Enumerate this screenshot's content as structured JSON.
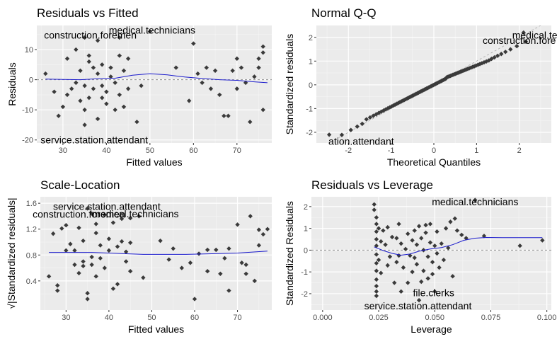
{
  "chart_data": [
    {
      "id": "rvf",
      "type": "scatter",
      "title": "Residuals vs Fitted",
      "xlabel": "Fitted values",
      "ylabel": "Residuals",
      "xlim": [
        24,
        78
      ],
      "ylim": [
        -21,
        18
      ],
      "xticks": [
        30,
        40,
        50,
        60,
        70
      ],
      "yticks": [
        -20,
        -10,
        0,
        10
      ],
      "refline": {
        "y": 0,
        "color": "#8c8c8c"
      },
      "smooth_color": "#1a1acc",
      "smooth": [
        [
          26,
          0.2
        ],
        [
          30,
          0.1
        ],
        [
          34,
          0.0
        ],
        [
          38,
          0.3
        ],
        [
          42,
          0.5
        ],
        [
          46,
          1.5
        ],
        [
          50,
          2.0
        ],
        [
          54,
          1.6
        ],
        [
          58,
          0.9
        ],
        [
          62,
          0.4
        ],
        [
          66,
          0.0
        ],
        [
          70,
          -0.2
        ],
        [
          74,
          -0.7
        ],
        [
          77,
          -1.0
        ]
      ],
      "points": [
        [
          26,
          2
        ],
        [
          28,
          -4
        ],
        [
          29,
          -12
        ],
        [
          30,
          -9
        ],
        [
          31,
          7
        ],
        [
          31,
          -5
        ],
        [
          32,
          -3
        ],
        [
          33,
          10
        ],
        [
          33,
          -1
        ],
        [
          34,
          3
        ],
        [
          34,
          -7
        ],
        [
          35,
          -10
        ],
        [
          35,
          -2
        ],
        [
          35,
          14
        ],
        [
          35,
          -15
        ],
        [
          36,
          6
        ],
        [
          36,
          8
        ],
        [
          36,
          -6
        ],
        [
          37,
          -3
        ],
        [
          37,
          4
        ],
        [
          38,
          -13
        ],
        [
          38,
          2
        ],
        [
          38,
          13
        ],
        [
          39,
          -6
        ],
        [
          39,
          5
        ],
        [
          39,
          -2
        ],
        [
          40,
          -8
        ],
        [
          40,
          -4
        ],
        [
          41,
          1
        ],
        [
          41,
          4
        ],
        [
          42,
          -1
        ],
        [
          42,
          -10
        ],
        [
          43,
          -5
        ],
        [
          43,
          8
        ],
        [
          43,
          14
        ],
        [
          44,
          3
        ],
        [
          44,
          -9
        ],
        [
          45,
          -3
        ],
        [
          45,
          7
        ],
        [
          47,
          -14
        ],
        [
          48,
          -2
        ],
        [
          50,
          16
        ],
        [
          56,
          4
        ],
        [
          59,
          -7
        ],
        [
          60,
          12
        ],
        [
          61,
          2
        ],
        [
          62,
          -1
        ],
        [
          63,
          4
        ],
        [
          64,
          -3
        ],
        [
          65,
          3
        ],
        [
          66,
          -5
        ],
        [
          67,
          -12
        ],
        [
          68,
          -12
        ],
        [
          69,
          3
        ],
        [
          70,
          -3
        ],
        [
          70,
          7
        ],
        [
          71,
          4
        ],
        [
          72,
          -1
        ],
        [
          73,
          -14
        ],
        [
          74,
          1
        ],
        [
          75,
          7
        ],
        [
          75,
          4
        ],
        [
          76,
          -10
        ],
        [
          76,
          11
        ],
        [
          76,
          9
        ]
      ],
      "annotations": [
        {
          "label": "medical.technicians",
          "x": 50.5,
          "y": 16.5
        },
        {
          "label": "construction.foremen",
          "x": 36.3,
          "y": 14.8
        },
        {
          "label": "service.station.attendant",
          "x": 37.2,
          "y": -19.9
        }
      ]
    },
    {
      "id": "qq",
      "type": "scatter",
      "title": "Normal Q-Q",
      "xlabel": "Theoretical Quantiles",
      "ylabel": "Standardized residuals",
      "xlim": [
        -2.75,
        2.75
      ],
      "ylim": [
        -2.45,
        2.5
      ],
      "xticks": [
        -2,
        -1,
        0,
        1,
        2
      ],
      "yticks": [
        -2,
        -1,
        0,
        1,
        2
      ],
      "refline": {
        "from": [
          -2.75,
          -2.75
        ],
        "to": [
          2.75,
          2.75
        ],
        "color": "#a8a8a8",
        "dashed": true
      },
      "series_qq": {
        "n": 96,
        "tail_low": [
          -2.45,
          -2.1
        ],
        "tail_high": [
          2.1,
          2.2
        ]
      },
      "annotations": [
        {
          "label": "medical.techn",
          "x": 2.55,
          "y": 2.1
        },
        {
          "label": "construction.fore",
          "x": 2.0,
          "y": 1.88
        },
        {
          "label": "ation.attendant",
          "x": -1.7,
          "y": -2.38
        }
      ]
    },
    {
      "id": "sl",
      "type": "scatter",
      "title": "Scale-Location",
      "xlabel": "Fitted values",
      "ylabel": "√|Standardized residuals|",
      "xlim": [
        24,
        78
      ],
      "ylim": [
        -0.05,
        1.7
      ],
      "xticks": [
        30,
        40,
        50,
        60,
        70
      ],
      "yticks": [
        0.4,
        0.8,
        1.2,
        1.6
      ],
      "smooth_color": "#1a1acc",
      "smooth": [
        [
          26,
          0.84
        ],
        [
          32,
          0.84
        ],
        [
          36,
          0.84
        ],
        [
          40,
          0.83
        ],
        [
          44,
          0.82
        ],
        [
          48,
          0.81
        ],
        [
          52,
          0.81
        ],
        [
          58,
          0.81
        ],
        [
          64,
          0.82
        ],
        [
          70,
          0.83
        ],
        [
          77,
          0.86
        ]
      ],
      "points": [
        [
          26,
          0.47
        ],
        [
          27,
          1.13
        ],
        [
          28,
          0.33
        ],
        [
          28,
          0.25
        ],
        [
          29,
          1.21
        ],
        [
          30,
          0.87
        ],
        [
          30,
          1.26
        ],
        [
          31,
          0.97
        ],
        [
          32,
          0.87
        ],
        [
          32,
          0.65
        ],
        [
          33,
          1.22
        ],
        [
          33,
          0.52
        ],
        [
          34,
          0.7
        ],
        [
          34,
          1.02
        ],
        [
          34,
          0.63
        ],
        [
          35,
          0.12
        ],
        [
          35,
          0.21
        ],
        [
          35,
          1.52
        ],
        [
          36,
          0.77
        ],
        [
          36,
          1.44
        ],
        [
          36,
          0.65
        ],
        [
          37,
          1.14
        ],
        [
          37,
          1.28
        ],
        [
          37,
          0.47
        ],
        [
          38,
          0.95
        ],
        [
          38,
          0.75
        ],
        [
          39,
          1.42
        ],
        [
          39,
          0.6
        ],
        [
          40,
          1.05
        ],
        [
          40,
          0.87
        ],
        [
          41,
          0.28
        ],
        [
          41,
          1.3
        ],
        [
          42,
          0.35
        ],
        [
          42,
          0.93
        ],
        [
          43,
          1.01
        ],
        [
          43,
          1.36
        ],
        [
          44,
          0.7
        ],
        [
          44,
          0.85
        ],
        [
          45,
          1.37
        ],
        [
          45,
          0.99
        ],
        [
          45,
          0.55
        ],
        [
          47,
          1.4
        ],
        [
          48,
          0.45
        ],
        [
          52,
          1.02
        ],
        [
          54,
          0.73
        ],
        [
          55,
          0.9
        ],
        [
          57,
          0.6
        ],
        [
          59,
          0.68
        ],
        [
          60,
          0.12
        ],
        [
          61,
          0.82
        ],
        [
          63,
          0.88
        ],
        [
          63,
          0.55
        ],
        [
          65,
          0.88
        ],
        [
          66,
          0.51
        ],
        [
          67,
          0.75
        ],
        [
          68,
          0.25
        ],
        [
          68,
          0.9
        ],
        [
          70,
          1.27
        ],
        [
          71,
          0.68
        ],
        [
          72,
          0.65
        ],
        [
          72,
          0.51
        ],
        [
          73,
          1.4
        ],
        [
          74,
          0.4
        ],
        [
          75,
          0.95
        ],
        [
          75,
          1.19
        ],
        [
          76,
          1.12
        ],
        [
          77,
          1.2
        ]
      ],
      "annotations": [
        {
          "label": "service.station.attendant",
          "x": 39.5,
          "y": 1.55
        },
        {
          "label": "medical.technicians",
          "x": 46.2,
          "y": 1.44
        },
        {
          "label": "construction.foremen",
          "x": 33.0,
          "y": 1.43
        }
      ]
    },
    {
      "id": "rvl",
      "type": "scatter",
      "title": "Residuals vs Leverage",
      "xlabel": "Leverage",
      "ylabel": "Standardized Residuals",
      "xlim": [
        -0.005,
        0.102
      ],
      "ylim": [
        -2.75,
        2.45
      ],
      "xticks": [
        0.0,
        0.025,
        0.05,
        0.075,
        0.1
      ],
      "xticklabels": [
        "0.000",
        "0.025",
        "0.050",
        "0.075",
        "0.100"
      ],
      "yticks": [
        -2,
        -1,
        0,
        1,
        2
      ],
      "refline": {
        "y": 0,
        "color": "#8c8c8c"
      },
      "smooth_color": "#1a1acc",
      "smooth": [
        [
          0.023,
          0.15
        ],
        [
          0.027,
          -0.02
        ],
        [
          0.031,
          -0.15
        ],
        [
          0.035,
          -0.23
        ],
        [
          0.039,
          -0.18
        ],
        [
          0.043,
          -0.05
        ],
        [
          0.048,
          0.05
        ],
        [
          0.053,
          0.12
        ],
        [
          0.058,
          0.25
        ],
        [
          0.063,
          0.45
        ],
        [
          0.068,
          0.55
        ],
        [
          0.073,
          0.58
        ],
        [
          0.08,
          0.57
        ],
        [
          0.09,
          0.57
        ],
        [
          0.098,
          0.57
        ]
      ],
      "points": [
        [
          0.023,
          2.1
        ],
        [
          0.023,
          1.85
        ],
        [
          0.024,
          1.5
        ],
        [
          0.024,
          1.2
        ],
        [
          0.024,
          0.85
        ],
        [
          0.024,
          0.5
        ],
        [
          0.024,
          0.2
        ],
        [
          0.024,
          -0.2
        ],
        [
          0.024,
          -0.6
        ],
        [
          0.024,
          -0.95
        ],
        [
          0.024,
          -1.35
        ],
        [
          0.024,
          -1.65
        ],
        [
          0.024,
          -1.9
        ],
        [
          0.024,
          -2.1
        ],
        [
          0.025,
          1.0
        ],
        [
          0.025,
          -0.45
        ],
        [
          0.026,
          0.4
        ],
        [
          0.026,
          -1.05
        ],
        [
          0.027,
          0.9
        ],
        [
          0.028,
          0.25
        ],
        [
          0.029,
          -0.7
        ],
        [
          0.029,
          1.05
        ],
        [
          0.03,
          -0.3
        ],
        [
          0.031,
          0.6
        ],
        [
          0.032,
          -1.5
        ],
        [
          0.033,
          0.55
        ],
        [
          0.033,
          -0.55
        ],
        [
          0.034,
          1.2
        ],
        [
          0.034,
          -0.25
        ],
        [
          0.035,
          -1.9
        ],
        [
          0.035,
          0.3
        ],
        [
          0.036,
          -0.8
        ],
        [
          0.037,
          0.05
        ],
        [
          0.038,
          -1.5
        ],
        [
          0.038,
          0.75
        ],
        [
          0.039,
          -0.25
        ],
        [
          0.04,
          0.45
        ],
        [
          0.04,
          -1.0
        ],
        [
          0.041,
          0.9
        ],
        [
          0.041,
          -0.35
        ],
        [
          0.042,
          -0.65
        ],
        [
          0.042,
          0.25
        ],
        [
          0.043,
          1.1
        ],
        [
          0.043,
          -2.3
        ],
        [
          0.044,
          0.55
        ],
        [
          0.044,
          -1.45
        ],
        [
          0.045,
          0.0
        ],
        [
          0.045,
          -0.95
        ],
        [
          0.046,
          0.8
        ],
        [
          0.046,
          1.15
        ],
        [
          0.047,
          -0.3
        ],
        [
          0.047,
          -1.3
        ],
        [
          0.048,
          1.2
        ],
        [
          0.048,
          0.35
        ],
        [
          0.049,
          -0.55
        ],
        [
          0.049,
          -1.1
        ],
        [
          0.05,
          0.2
        ],
        [
          0.05,
          -1.9
        ],
        [
          0.051,
          0.85
        ],
        [
          0.051,
          -0.15
        ],
        [
          0.052,
          -0.8
        ],
        [
          0.053,
          0.3
        ],
        [
          0.054,
          -0.45
        ],
        [
          0.055,
          1.0
        ],
        [
          0.056,
          0.1
        ],
        [
          0.057,
          1.3
        ],
        [
          0.058,
          -1.2
        ],
        [
          0.059,
          1.45
        ],
        [
          0.06,
          0.9
        ],
        [
          0.062,
          0.7
        ],
        [
          0.064,
          0.55
        ],
        [
          0.068,
          2.3
        ],
        [
          0.072,
          0.65
        ],
        [
          0.088,
          0.2
        ],
        [
          0.098,
          0.45
        ]
      ],
      "annotations": [
        {
          "label": "medical.technicians",
          "x": 0.068,
          "y": 2.22
        },
        {
          "label": "file.clerks",
          "x": 0.0495,
          "y": -1.95
        },
        {
          "label": "service.station.attendant",
          "x": 0.0425,
          "y": -2.55
        }
      ]
    }
  ]
}
